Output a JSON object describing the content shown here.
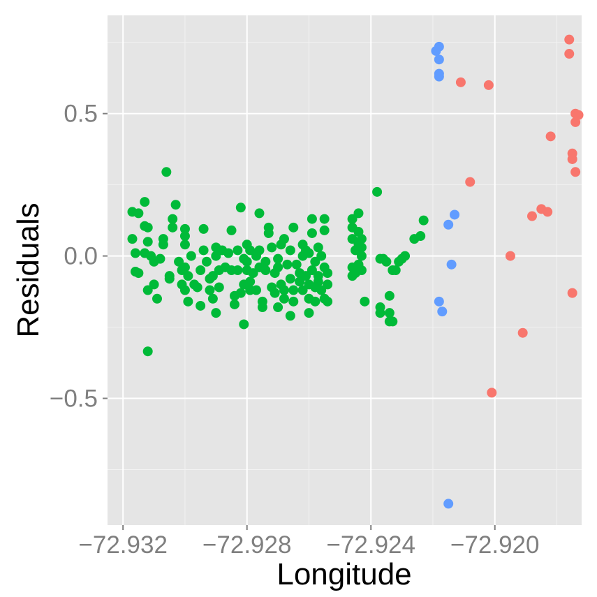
{
  "chart_data": {
    "type": "scatter",
    "xlabel": "Longitude",
    "ylabel": "Residuals",
    "xlim": [
      -72.9325,
      -72.9172
    ],
    "ylim": [
      -0.945,
      0.845
    ],
    "x_ticks": [
      -72.932,
      -72.928,
      -72.924,
      -72.92
    ],
    "x_tick_labels": [
      "−72.932",
      "−72.928",
      "−72.924",
      "−72.920"
    ],
    "y_ticks": [
      -0.5,
      0.0,
      0.5
    ],
    "y_tick_labels": [
      "−0.5",
      "0.0",
      "0.5"
    ],
    "grid": true,
    "legend": "none",
    "series": [
      {
        "color": "#00ba38",
        "points": [
          [
            -72.9317,
            0.06
          ],
          [
            -72.9317,
            0.155
          ],
          [
            -72.9316,
            -0.055
          ],
          [
            -72.9316,
            0.01
          ],
          [
            -72.9315,
            0.15
          ],
          [
            -72.9315,
            -0.06
          ],
          [
            -72.9313,
            0.19
          ],
          [
            -72.9313,
            0.01
          ],
          [
            -72.9313,
            0.105
          ],
          [
            -72.9312,
            0.1
          ],
          [
            -72.9312,
            0.05
          ],
          [
            -72.9312,
            -0.335
          ],
          [
            -72.9312,
            -0.12
          ],
          [
            -72.9311,
            0.0
          ],
          [
            -72.931,
            -0.02
          ],
          [
            -72.931,
            -0.1
          ],
          [
            -72.9309,
            -0.15
          ],
          [
            -72.9308,
            -0.01
          ],
          [
            -72.9307,
            0.04
          ],
          [
            -72.9307,
            0.06
          ],
          [
            -72.9306,
            0.295
          ],
          [
            -72.9305,
            -0.07
          ],
          [
            -72.9305,
            -0.08
          ],
          [
            -72.9304,
            0.1
          ],
          [
            -72.9304,
            0.13
          ],
          [
            -72.9303,
            0.18
          ],
          [
            -72.9302,
            -0.02
          ],
          [
            -72.9301,
            -0.05
          ],
          [
            -72.9301,
            -0.1
          ],
          [
            -72.93,
            -0.12
          ],
          [
            -72.93,
            0.07
          ],
          [
            -72.93,
            0.095
          ],
          [
            -72.93,
            0.04
          ],
          [
            -72.93,
            -0.04
          ],
          [
            -72.9299,
            -0.07
          ],
          [
            -72.9299,
            -0.16
          ],
          [
            -72.9298,
            0.0
          ],
          [
            -72.9297,
            -0.1
          ],
          [
            -72.9296,
            -0.11
          ],
          [
            -72.9295,
            -0.05
          ],
          [
            -72.9295,
            -0.175
          ],
          [
            -72.9294,
            0.02
          ],
          [
            -72.9294,
            0.095
          ],
          [
            -72.9293,
            -0.02
          ],
          [
            -72.9292,
            -0.08
          ],
          [
            -72.9292,
            -0.12
          ],
          [
            -72.9291,
            -0.07
          ],
          [
            -72.9291,
            -0.15
          ],
          [
            -72.929,
            0.0
          ],
          [
            -72.929,
            -0.2
          ],
          [
            -72.929,
            0.03
          ],
          [
            -72.9289,
            -0.05
          ],
          [
            -72.9289,
            -0.11
          ],
          [
            -72.9288,
            0.02
          ],
          [
            -72.9287,
            -0.04
          ],
          [
            -72.9286,
            0.01
          ],
          [
            -72.9285,
            -0.05
          ],
          [
            -72.9285,
            0.09
          ],
          [
            -72.9284,
            -0.17
          ],
          [
            -72.9284,
            -0.14
          ],
          [
            -72.9283,
            0.02
          ],
          [
            -72.9283,
            -0.05
          ],
          [
            -72.9282,
            0.17
          ],
          [
            -72.9282,
            -0.13
          ],
          [
            -72.9281,
            -0.24
          ],
          [
            -72.9281,
            -0.1
          ],
          [
            -72.9281,
            -0.01
          ],
          [
            -72.928,
            0.04
          ],
          [
            -72.928,
            -0.02
          ],
          [
            -72.928,
            -0.05
          ],
          [
            -72.9279,
            -0.09
          ],
          [
            -72.9279,
            -0.12
          ],
          [
            -72.9279,
            0.02
          ],
          [
            -72.9278,
            -0.06
          ],
          [
            -72.9277,
            0.0
          ],
          [
            -72.9277,
            -0.12
          ],
          [
            -72.9276,
            0.02
          ],
          [
            -72.9276,
            -0.04
          ],
          [
            -72.9276,
            0.15
          ],
          [
            -72.9275,
            -0.16
          ],
          [
            -72.9275,
            -0.18
          ],
          [
            -72.9274,
            -0.02
          ],
          [
            -72.9274,
            -0.05
          ],
          [
            -72.9273,
            0.1
          ],
          [
            -72.9273,
            0.08
          ],
          [
            -72.9272,
            0.03
          ],
          [
            -72.9272,
            -0.11
          ],
          [
            -72.9271,
            -0.13
          ],
          [
            -72.9271,
            -0.06
          ],
          [
            -72.927,
            -0.18
          ],
          [
            -72.927,
            -0.04
          ],
          [
            -72.927,
            -0.01
          ],
          [
            -72.9269,
            0.04
          ],
          [
            -72.9269,
            -0.1
          ],
          [
            -72.9268,
            -0.12
          ],
          [
            -72.9268,
            -0.15
          ],
          [
            -72.9268,
            0.06
          ],
          [
            -72.9267,
            -0.03
          ],
          [
            -72.9266,
            -0.21
          ],
          [
            -72.9266,
            -0.08
          ],
          [
            -72.9266,
            0.02
          ],
          [
            -72.9265,
            0.1
          ],
          [
            -72.9265,
            -0.16
          ],
          [
            -72.9265,
            -0.12
          ],
          [
            -72.9264,
            -0.03
          ],
          [
            -72.9263,
            -0.09
          ],
          [
            -72.9263,
            -0.06
          ],
          [
            -72.9262,
            0.04
          ],
          [
            -72.9262,
            -0.12
          ],
          [
            -72.9262,
            0.0
          ],
          [
            -72.9261,
            -0.07
          ],
          [
            -72.9261,
            0.02
          ],
          [
            -72.926,
            -0.1
          ],
          [
            -72.926,
            -0.15
          ],
          [
            -72.926,
            0.01
          ],
          [
            -72.926,
            -0.2
          ],
          [
            -72.9259,
            0.08
          ],
          [
            -72.9259,
            0.13
          ],
          [
            -72.9259,
            -0.05
          ],
          [
            -72.9258,
            -0.11
          ],
          [
            -72.9258,
            -0.02
          ],
          [
            -72.9258,
            -0.16
          ],
          [
            -72.9257,
            0.03
          ],
          [
            -72.9257,
            -0.07
          ],
          [
            -72.9257,
            -0.09
          ],
          [
            -72.9256,
            -0.12
          ],
          [
            -72.9256,
            0.0
          ],
          [
            -72.9255,
            -0.04
          ],
          [
            -72.9255,
            -0.15
          ],
          [
            -72.9255,
            0.13
          ],
          [
            -72.9255,
            0.09
          ],
          [
            -72.9254,
            -0.1
          ],
          [
            -72.9254,
            -0.16
          ],
          [
            -72.9254,
            -0.06
          ],
          [
            -72.9246,
            0.13
          ],
          [
            -72.9246,
            0.1
          ],
          [
            -72.9246,
            0.06
          ],
          [
            -72.9246,
            -0.04
          ],
          [
            -72.9246,
            -0.07
          ],
          [
            -72.9245,
            -0.06
          ],
          [
            -72.9245,
            0.02
          ],
          [
            -72.9244,
            0.085
          ],
          [
            -72.9244,
            0.04
          ],
          [
            -72.9244,
            0.15
          ],
          [
            -72.9244,
            -0.03
          ],
          [
            -72.9243,
            -0.05
          ],
          [
            -72.9243,
            0.03
          ],
          [
            -72.9243,
            0.06
          ],
          [
            -72.9243,
            0.0
          ],
          [
            -72.9242,
            -0.16
          ],
          [
            -72.9238,
            0.225
          ],
          [
            -72.9237,
            -0.01
          ],
          [
            -72.9237,
            -0.18
          ],
          [
            -72.9237,
            -0.2
          ],
          [
            -72.9236,
            -0.01
          ],
          [
            -72.9235,
            -0.02
          ],
          [
            -72.9234,
            -0.2
          ],
          [
            -72.9234,
            -0.14
          ],
          [
            -72.9234,
            -0.23
          ],
          [
            -72.9233,
            -0.23
          ],
          [
            -72.9233,
            -0.05
          ],
          [
            -72.9232,
            -0.05
          ],
          [
            -72.9231,
            -0.02
          ],
          [
            -72.923,
            -0.01
          ],
          [
            -72.9229,
            0.0
          ],
          [
            -72.9226,
            0.06
          ],
          [
            -72.9224,
            0.07
          ],
          [
            -72.9223,
            0.125
          ]
        ]
      },
      {
        "color": "#619cff",
        "points": [
          [
            -72.9219,
            0.72
          ],
          [
            -72.9218,
            0.735
          ],
          [
            -72.9218,
            0.69
          ],
          [
            -72.9218,
            0.64
          ],
          [
            -72.9218,
            0.63
          ],
          [
            -72.9218,
            -0.16
          ],
          [
            -72.9217,
            -0.195
          ],
          [
            -72.9215,
            0.11
          ],
          [
            -72.9215,
            -0.87
          ],
          [
            -72.9214,
            -0.03
          ],
          [
            -72.9213,
            0.145
          ]
        ]
      },
      {
        "color": "#f8766d",
        "points": [
          [
            -72.9211,
            0.61
          ],
          [
            -72.9208,
            0.26
          ],
          [
            -72.9202,
            0.6
          ],
          [
            -72.9201,
            -0.48
          ],
          [
            -72.9195,
            0.0
          ],
          [
            -72.9191,
            -0.27
          ],
          [
            -72.9188,
            0.14
          ],
          [
            -72.9185,
            0.165
          ],
          [
            -72.9183,
            0.155
          ],
          [
            -72.9182,
            0.42
          ],
          [
            -72.9176,
            0.76
          ],
          [
            -72.9176,
            0.71
          ],
          [
            -72.9175,
            -0.13
          ],
          [
            -72.9175,
            0.36
          ],
          [
            -72.9175,
            0.34
          ],
          [
            -72.9174,
            0.5
          ],
          [
            -72.9174,
            0.47
          ],
          [
            -72.9174,
            0.295
          ],
          [
            -72.9173,
            0.495
          ]
        ]
      }
    ]
  }
}
